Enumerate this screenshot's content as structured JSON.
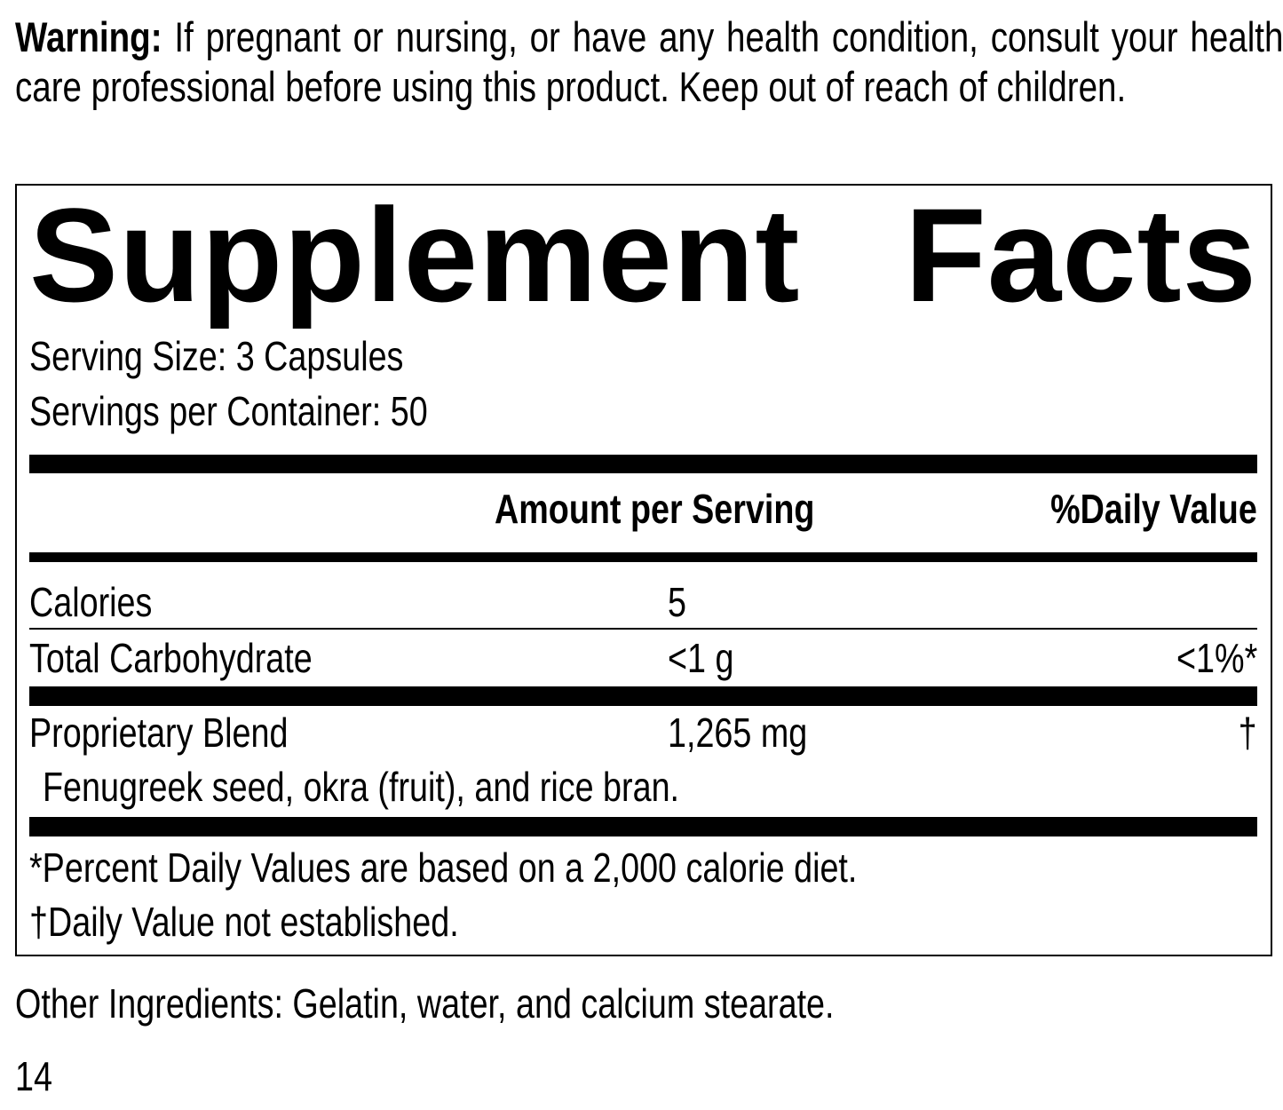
{
  "warning": {
    "label": "Warning:",
    "text": "If pregnant or nursing, or have any health condition, consult your health care professional before using this product. Keep out of reach of children."
  },
  "facts": {
    "title_word1": "Supplement",
    "title_word2": "Facts",
    "serving_size": "Serving Size: 3 Capsules",
    "servings_per_container": "Servings per Container: 50",
    "header_amount": "Amount per Serving",
    "header_dv": "%Daily Value",
    "rows": [
      {
        "name": "Calories",
        "amount": "5",
        "dv": ""
      },
      {
        "name": "Total Carbohydrate",
        "amount": "<1 g",
        "dv": "<1%*"
      },
      {
        "name": "Proprietary Blend",
        "amount": "1,265 mg",
        "dv": "†"
      }
    ],
    "blend_ingredients": "Fenugreek seed, okra (fruit), and rice bran.",
    "footnote1": "*Percent Daily Values are based on a 2,000 calorie diet.",
    "footnote2": "†Daily Value not established."
  },
  "other_ingredients": "Other Ingredients: Gelatin, water, and calcium stearate.",
  "page_number": "14"
}
